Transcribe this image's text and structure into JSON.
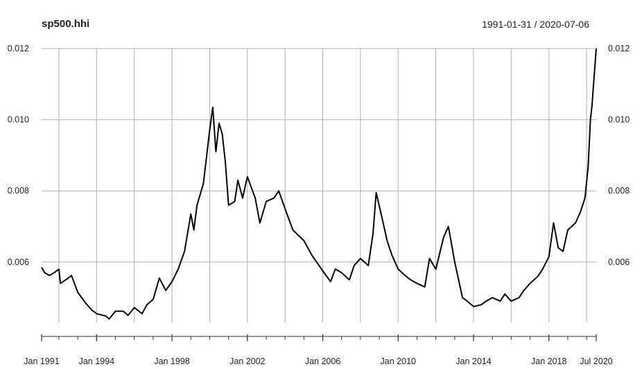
{
  "header": {
    "title": "sp500.hhi",
    "date_range": "1991-01-31 / 2020-07-06"
  },
  "chart_data": {
    "type": "line",
    "title": "sp500.hhi",
    "subtitle": "1991-01-31 / 2020-07-06",
    "xlabel": "",
    "ylabel": "",
    "xlim": [
      "1991-01-31",
      "2020-07-06"
    ],
    "ylim": [
      0.0043,
      0.012
    ],
    "grid": true,
    "legend": "none",
    "line_color": "#000000",
    "x_tick_labels": [
      {
        "date": "1991-01-31",
        "label": "Jan 1991"
      },
      {
        "date": "1994-01-01",
        "label": "Jan 1994"
      },
      {
        "date": "1998-01-01",
        "label": "Jan 1998"
      },
      {
        "date": "2002-01-01",
        "label": "Jan 2002"
      },
      {
        "date": "2006-01-01",
        "label": "Jan 2006"
      },
      {
        "date": "2010-01-01",
        "label": "Jan 2010"
      },
      {
        "date": "2014-01-01",
        "label": "Jan 2014"
      },
      {
        "date": "2018-01-01",
        "label": "Jan 2018"
      },
      {
        "date": "2020-07-06",
        "label": "Jul 2020"
      }
    ],
    "x_gridlines": [
      "1992-01-01",
      "1994-01-01",
      "1996-01-01",
      "1998-01-01",
      "2000-01-01",
      "2002-01-01",
      "2004-01-01",
      "2006-01-01",
      "2008-01-01",
      "2010-01-01",
      "2012-01-01",
      "2014-01-01",
      "2016-01-01",
      "2018-01-01",
      "2020-01-01"
    ],
    "y_ticks": [
      {
        "value": 0.006,
        "label": "0.006"
      },
      {
        "value": 0.008,
        "label": "0.008"
      },
      {
        "value": 0.01,
        "label": "0.010"
      },
      {
        "value": 0.012,
        "label": "0.012"
      }
    ],
    "series": [
      {
        "values": [
          [
            "1991-01-31",
            0.00585
          ],
          [
            "1991-04-01",
            0.0057
          ],
          [
            "1991-07-01",
            0.00562
          ],
          [
            "1991-10-01",
            0.0057
          ],
          [
            "1992-01-01",
            0.0058
          ],
          [
            "1992-02-01",
            0.0054
          ],
          [
            "1992-06-01",
            0.00552
          ],
          [
            "1992-09-01",
            0.00562
          ],
          [
            "1993-01-01",
            0.00515
          ],
          [
            "1993-06-01",
            0.00485
          ],
          [
            "1993-10-01",
            0.00465
          ],
          [
            "1994-01-01",
            0.00455
          ],
          [
            "1994-07-01",
            0.00448
          ],
          [
            "1994-09-01",
            0.0044
          ],
          [
            "1995-01-01",
            0.00462
          ],
          [
            "1995-06-01",
            0.00462
          ],
          [
            "1995-09-01",
            0.0045
          ],
          [
            "1996-01-01",
            0.00472
          ],
          [
            "1996-06-01",
            0.00455
          ],
          [
            "1996-09-01",
            0.0048
          ],
          [
            "1997-01-01",
            0.00495
          ],
          [
            "1997-05-01",
            0.00555
          ],
          [
            "1997-09-01",
            0.0052
          ],
          [
            "1998-01-01",
            0.00545
          ],
          [
            "1998-05-01",
            0.0058
          ],
          [
            "1998-09-01",
            0.0063
          ],
          [
            "1999-01-01",
            0.00735
          ],
          [
            "1999-03-01",
            0.0069
          ],
          [
            "1999-05-01",
            0.0076
          ],
          [
            "1999-09-01",
            0.0082
          ],
          [
            "2000-01-01",
            0.0097
          ],
          [
            "2000-03-01",
            0.01035
          ],
          [
            "2000-05-01",
            0.0091
          ],
          [
            "2000-07-01",
            0.0099
          ],
          [
            "2000-09-01",
            0.0096
          ],
          [
            "2000-11-01",
            0.0088
          ],
          [
            "2001-01-01",
            0.0076
          ],
          [
            "2001-05-01",
            0.0077
          ],
          [
            "2001-07-01",
            0.0083
          ],
          [
            "2001-10-01",
            0.0078
          ],
          [
            "2002-01-01",
            0.0084
          ],
          [
            "2002-06-01",
            0.0078
          ],
          [
            "2002-09-01",
            0.0071
          ],
          [
            "2003-01-01",
            0.0077
          ],
          [
            "2003-06-01",
            0.0078
          ],
          [
            "2003-09-01",
            0.008
          ],
          [
            "2004-01-01",
            0.0075
          ],
          [
            "2004-06-01",
            0.0069
          ],
          [
            "2005-01-01",
            0.0066
          ],
          [
            "2005-06-01",
            0.0062
          ],
          [
            "2006-01-01",
            0.00575
          ],
          [
            "2006-06-01",
            0.00545
          ],
          [
            "2006-09-01",
            0.0058
          ],
          [
            "2007-01-01",
            0.0057
          ],
          [
            "2007-06-01",
            0.0055
          ],
          [
            "2007-09-01",
            0.0059
          ],
          [
            "2008-01-01",
            0.0061
          ],
          [
            "2008-06-01",
            0.0059
          ],
          [
            "2008-09-01",
            0.0068
          ],
          [
            "2008-11-01",
            0.00795
          ],
          [
            "2009-03-01",
            0.0072
          ],
          [
            "2009-06-01",
            0.0066
          ],
          [
            "2009-09-01",
            0.0062
          ],
          [
            "2010-01-01",
            0.0058
          ],
          [
            "2010-06-01",
            0.0056
          ],
          [
            "2010-09-01",
            0.0055
          ],
          [
            "2011-01-01",
            0.0054
          ],
          [
            "2011-06-01",
            0.0053
          ],
          [
            "2011-09-01",
            0.0061
          ],
          [
            "2012-01-01",
            0.0058
          ],
          [
            "2012-06-01",
            0.0067
          ],
          [
            "2012-09-01",
            0.007
          ],
          [
            "2013-01-01",
            0.006
          ],
          [
            "2013-06-01",
            0.005
          ],
          [
            "2013-09-01",
            0.0049
          ],
          [
            "2014-01-01",
            0.00475
          ],
          [
            "2014-06-01",
            0.0048
          ],
          [
            "2014-09-01",
            0.0049
          ],
          [
            "2015-01-01",
            0.005
          ],
          [
            "2015-06-01",
            0.0049
          ],
          [
            "2015-09-01",
            0.0051
          ],
          [
            "2016-01-01",
            0.0049
          ],
          [
            "2016-06-01",
            0.005
          ],
          [
            "2016-09-01",
            0.0052
          ],
          [
            "2017-01-01",
            0.0054
          ],
          [
            "2017-06-01",
            0.0056
          ],
          [
            "2017-09-01",
            0.0058
          ],
          [
            "2018-01-01",
            0.00615
          ],
          [
            "2018-04-01",
            0.0071
          ],
          [
            "2018-07-01",
            0.0064
          ],
          [
            "2018-10-01",
            0.0063
          ],
          [
            "2019-01-01",
            0.0069
          ],
          [
            "2019-06-01",
            0.0071
          ],
          [
            "2019-09-01",
            0.0074
          ],
          [
            "2019-12-01",
            0.0078
          ],
          [
            "2020-02-01",
            0.0087
          ],
          [
            "2020-03-15",
            0.01
          ],
          [
            "2020-04-15",
            0.0104
          ],
          [
            "2020-05-15",
            0.011
          ],
          [
            "2020-07-06",
            0.012
          ]
        ]
      }
    ]
  }
}
